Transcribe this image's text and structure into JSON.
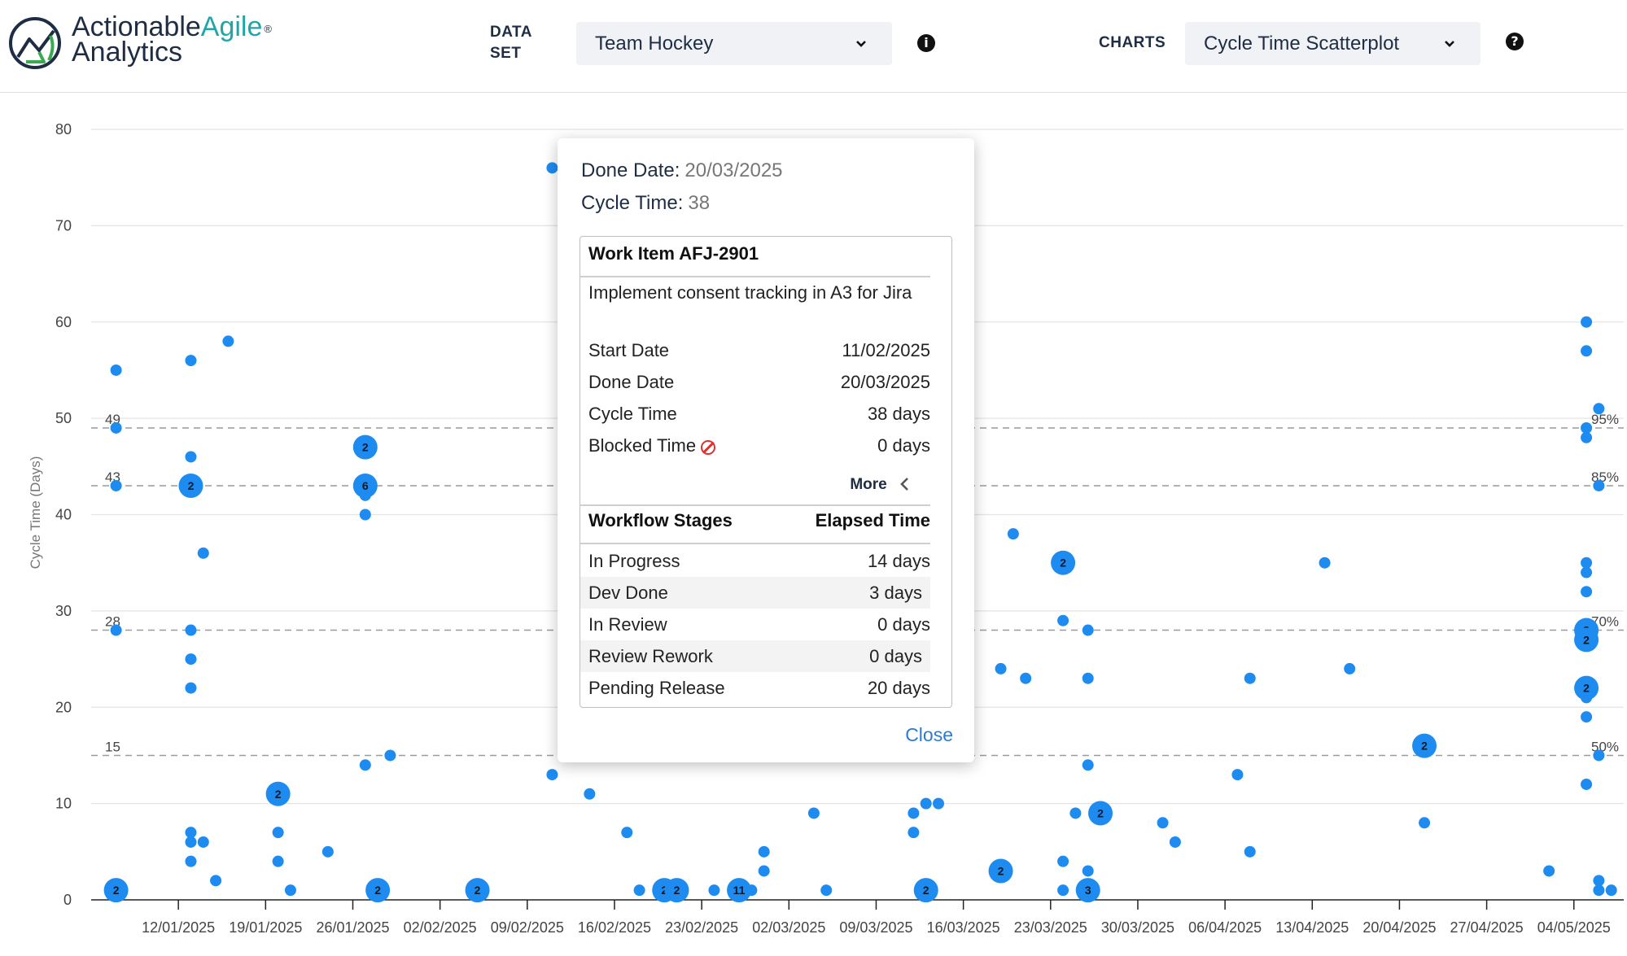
{
  "header": {
    "logo": {
      "line1": "ActionableAgile",
      "line1_a": "Actionable",
      "line1_b": "Agile",
      "line2": "Analytics",
      "registered": "®"
    },
    "dataset_label_1": "DATA",
    "dataset_label_2": "SET",
    "dataset_value": "Team Hockey",
    "info_icon": "info-icon",
    "charts_label": "CHARTS",
    "charts_value": "Cycle Time Scatterplot",
    "help_icon": "help-icon"
  },
  "tooltip": {
    "done_date_label": "Done Date:",
    "done_date_value": "20/03/2025",
    "cycle_time_label": "Cycle Time:",
    "cycle_time_value": "38",
    "work_item_title": "Work Item AFJ-2901",
    "description": "Implement consent tracking in A3 for Jira",
    "rows": [
      {
        "label": "Start Date",
        "value": "11/02/2025"
      },
      {
        "label": "Done Date",
        "value": "20/03/2025"
      },
      {
        "label": "Cycle Time",
        "value": "38 days"
      },
      {
        "label": "Blocked Time",
        "value": "0 days"
      }
    ],
    "more_label": "More",
    "workflow_header": "Workflow Stages",
    "elapsed_header": "Elapsed Time",
    "stages": [
      {
        "label": "In Progress",
        "value": "14 days"
      },
      {
        "label": "Dev Done",
        "value": "3 days"
      },
      {
        "label": "In Review",
        "value": "0 days"
      },
      {
        "label": "Review Rework",
        "value": "0 days"
      },
      {
        "label": "Pending Release",
        "value": "20 days"
      }
    ],
    "close_label": "Close"
  },
  "colors": {
    "point": "#1e8bf0",
    "text_dark": "#1e2d44",
    "link": "#2b7bd6",
    "blocked": "#e03030"
  },
  "chart_data": {
    "type": "scatter",
    "ylabel": "Cycle Time (Days)",
    "ylim": [
      0,
      80
    ],
    "yticks": [
      0,
      10,
      20,
      30,
      40,
      50,
      60,
      70,
      80
    ],
    "xlim": [
      "2025-01-05",
      "2025-05-08"
    ],
    "xticks": [
      "12/01/2025",
      "19/01/2025",
      "26/01/2025",
      "02/02/2025",
      "09/02/2025",
      "16/02/2025",
      "23/02/2025",
      "02/03/2025",
      "09/03/2025",
      "16/03/2025",
      "23/03/2025",
      "30/03/2025",
      "06/04/2025",
      "13/04/2025",
      "20/04/2025",
      "27/04/2025",
      "04/05/2025"
    ],
    "grid": true,
    "percentiles": [
      {
        "value": 49,
        "label": "49",
        "pct": "95%"
      },
      {
        "value": 43,
        "label": "43",
        "pct": "85%"
      },
      {
        "value": 28,
        "label": "28",
        "pct": "70%"
      },
      {
        "value": 15,
        "label": "15",
        "pct": "50%"
      }
    ],
    "points": [
      {
        "x": "2025-01-07",
        "y": 55
      },
      {
        "x": "2025-01-07",
        "y": 49
      },
      {
        "x": "2025-01-07",
        "y": 43
      },
      {
        "x": "2025-01-07",
        "y": 28
      },
      {
        "x": "2025-01-07",
        "y": 1,
        "count": 2
      },
      {
        "x": "2025-01-13",
        "y": 56
      },
      {
        "x": "2025-01-13",
        "y": 46
      },
      {
        "x": "2025-01-13",
        "y": 43,
        "count": 2
      },
      {
        "x": "2025-01-13",
        "y": 28
      },
      {
        "x": "2025-01-13",
        "y": 25
      },
      {
        "x": "2025-01-13",
        "y": 22
      },
      {
        "x": "2025-01-13",
        "y": 7
      },
      {
        "x": "2025-01-13",
        "y": 6
      },
      {
        "x": "2025-01-13",
        "y": 4
      },
      {
        "x": "2025-01-14",
        "y": 36
      },
      {
        "x": "2025-01-14",
        "y": 6
      },
      {
        "x": "2025-01-15",
        "y": 2
      },
      {
        "x": "2025-01-16",
        "y": 58
      },
      {
        "x": "2025-01-20",
        "y": 11,
        "count": 2
      },
      {
        "x": "2025-01-20",
        "y": 7
      },
      {
        "x": "2025-01-20",
        "y": 4
      },
      {
        "x": "2025-01-21",
        "y": 1
      },
      {
        "x": "2025-01-24",
        "y": 5
      },
      {
        "x": "2025-01-27",
        "y": 47,
        "count": 2
      },
      {
        "x": "2025-01-27",
        "y": 43,
        "count": 6
      },
      {
        "x": "2025-01-27",
        "y": 42
      },
      {
        "x": "2025-01-27",
        "y": 40
      },
      {
        "x": "2025-01-27",
        "y": 14
      },
      {
        "x": "2025-01-28",
        "y": 1,
        "count": 2
      },
      {
        "x": "2025-01-29",
        "y": 15
      },
      {
        "x": "2025-02-05",
        "y": 1,
        "count": 2
      },
      {
        "x": "2025-02-11",
        "y": 76
      },
      {
        "x": "2025-02-11",
        "y": 13
      },
      {
        "x": "2025-02-12",
        "y": 17
      },
      {
        "x": "2025-02-14",
        "y": 11
      },
      {
        "x": "2025-02-17",
        "y": 7
      },
      {
        "x": "2025-02-18",
        "y": 1
      },
      {
        "x": "2025-02-20",
        "y": 1,
        "count": 2
      },
      {
        "x": "2025-02-21",
        "y": 1,
        "count": 2
      },
      {
        "x": "2025-02-24",
        "y": 1
      },
      {
        "x": "2025-02-26",
        "y": 1,
        "count": 11
      },
      {
        "x": "2025-02-27",
        "y": 1
      },
      {
        "x": "2025-02-28",
        "y": 5
      },
      {
        "x": "2025-02-28",
        "y": 3
      },
      {
        "x": "2025-03-04",
        "y": 9
      },
      {
        "x": "2025-03-05",
        "y": 1
      },
      {
        "x": "2025-03-12",
        "y": 9
      },
      {
        "x": "2025-03-12",
        "y": 7
      },
      {
        "x": "2025-03-13",
        "y": 10
      },
      {
        "x": "2025-03-13",
        "y": 1,
        "count": 2
      },
      {
        "x": "2025-03-14",
        "y": 10
      },
      {
        "x": "2025-03-20",
        "y": 38
      },
      {
        "x": "2025-03-19",
        "y": 24
      },
      {
        "x": "2025-03-19",
        "y": 3,
        "count": 2
      },
      {
        "x": "2025-03-21",
        "y": 23
      },
      {
        "x": "2025-03-24",
        "y": 35,
        "count": 2
      },
      {
        "x": "2025-03-24",
        "y": 29
      },
      {
        "x": "2025-03-24",
        "y": 4
      },
      {
        "x": "2025-03-24",
        "y": 1
      },
      {
        "x": "2025-03-25",
        "y": 9
      },
      {
        "x": "2025-03-26",
        "y": 28
      },
      {
        "x": "2025-03-26",
        "y": 23
      },
      {
        "x": "2025-03-26",
        "y": 14
      },
      {
        "x": "2025-03-26",
        "y": 3
      },
      {
        "x": "2025-03-26",
        "y": 1,
        "count": 3
      },
      {
        "x": "2025-03-27",
        "y": 9,
        "count": 2
      },
      {
        "x": "2025-04-01",
        "y": 8
      },
      {
        "x": "2025-04-02",
        "y": 6
      },
      {
        "x": "2025-04-07",
        "y": 13
      },
      {
        "x": "2025-04-08",
        "y": 23
      },
      {
        "x": "2025-04-08",
        "y": 5
      },
      {
        "x": "2025-04-14",
        "y": 35
      },
      {
        "x": "2025-04-16",
        "y": 24
      },
      {
        "x": "2025-04-22",
        "y": 16,
        "count": 2
      },
      {
        "x": "2025-04-22",
        "y": 8
      },
      {
        "x": "2025-05-02",
        "y": 3
      },
      {
        "x": "2025-05-05",
        "y": 60
      },
      {
        "x": "2025-05-05",
        "y": 57
      },
      {
        "x": "2025-05-05",
        "y": 49
      },
      {
        "x": "2025-05-05",
        "y": 48
      },
      {
        "x": "2025-05-05",
        "y": 35
      },
      {
        "x": "2025-05-05",
        "y": 34
      },
      {
        "x": "2025-05-05",
        "y": 32
      },
      {
        "x": "2025-05-05",
        "y": 28,
        "count": 3
      },
      {
        "x": "2025-05-05",
        "y": 27,
        "count": 2
      },
      {
        "x": "2025-05-05",
        "y": 22,
        "count": 2
      },
      {
        "x": "2025-05-05",
        "y": 21
      },
      {
        "x": "2025-05-05",
        "y": 19
      },
      {
        "x": "2025-05-05",
        "y": 12
      },
      {
        "x": "2025-05-06",
        "y": 51
      },
      {
        "x": "2025-05-06",
        "y": 43
      },
      {
        "x": "2025-05-06",
        "y": 15
      },
      {
        "x": "2025-05-06",
        "y": 2
      },
      {
        "x": "2025-05-06",
        "y": 1
      },
      {
        "x": "2025-05-07",
        "y": 1
      }
    ]
  }
}
